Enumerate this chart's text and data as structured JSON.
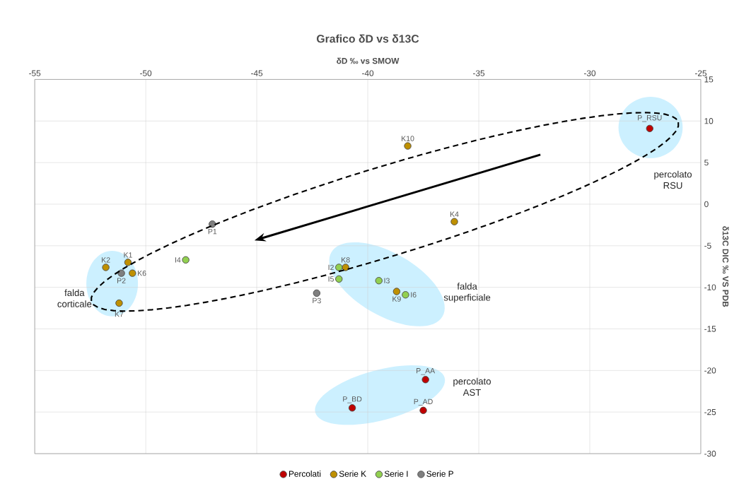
{
  "chart_data": {
    "type": "scatter",
    "title": "Grafico δD vs δ13C",
    "xlabel": "δD ‰ vs SMOW",
    "ylabel": "δ13C DIC ‰ VS PDB",
    "xlim": [
      -55,
      -25
    ],
    "xticks": [
      -55,
      -50,
      -45,
      -40,
      -35,
      -30,
      -25
    ],
    "ylim": [
      -30,
      15
    ],
    "yticks": [
      -30,
      -25,
      -20,
      -15,
      -10,
      -5,
      0,
      5,
      10,
      15
    ],
    "grid": true,
    "legend": "bottom",
    "marker": "circle",
    "series": [
      {
        "name": "Percolati",
        "color": "#c00000",
        "x": [
          -27.3,
          -37.4,
          -40.7,
          -37.5
        ],
        "values": [
          9.1,
          -21.1,
          -24.5,
          -24.8
        ],
        "value_labels": [
          "P_RSU",
          "P_AA",
          "P_BD",
          "P_AD"
        ]
      },
      {
        "name": "Serie K",
        "color": "#bf9000",
        "x": [
          -38.2,
          -36.1,
          -51.8,
          -50.8,
          -50.6,
          -51.2,
          -41.0,
          -38.7
        ],
        "values": [
          7.0,
          -2.1,
          -7.6,
          -7.0,
          -8.3,
          -11.9,
          -7.6,
          -10.5
        ],
        "value_labels": [
          "K10",
          "K4",
          "K2",
          "K1",
          "K6",
          "K7",
          "K8",
          "K9"
        ]
      },
      {
        "name": "Serie I",
        "color": "#92d050",
        "x": [
          -48.2,
          -41.3,
          -41.3,
          -39.5,
          -38.3
        ],
        "values": [
          -6.7,
          -7.6,
          -9.0,
          -9.2,
          -10.9
        ],
        "value_labels": [
          "I4",
          "I2",
          "I5",
          "I3",
          "I6"
        ]
      },
      {
        "name": "Serie P",
        "color": "#7f7f7f",
        "x": [
          -47.0,
          -51.1,
          -42.3
        ],
        "values": [
          -2.4,
          -8.3,
          -10.7
        ],
        "value_labels": [
          "P1",
          "P2",
          "P3"
        ]
      }
    ],
    "annotations": [
      "falda corticale",
      "falda superficiale",
      "percolato RSU",
      "percolato AST"
    ]
  }
}
